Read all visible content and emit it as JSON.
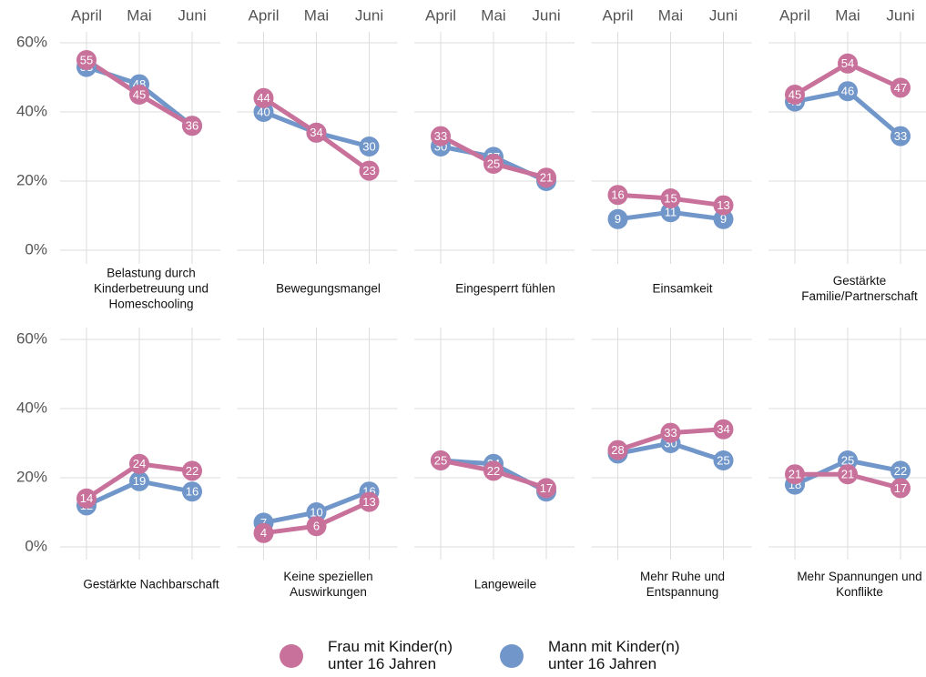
{
  "chart_data": {
    "type": "line",
    "categories": [
      "April",
      "Mai",
      "Juni"
    ],
    "ylim": [
      -4,
      63
    ],
    "yticks": [
      {
        "value": 0,
        "label": "0%"
      },
      {
        "value": 20,
        "label": "20%"
      },
      {
        "value": 40,
        "label": "40%"
      },
      {
        "value": 60,
        "label": "60%"
      }
    ],
    "grid": true,
    "legend": "bottom",
    "series": [
      {
        "name": "Frau mit Kinder(n) unter 16 Jahren",
        "color": "#c8719b"
      },
      {
        "name": "Mann mit Kinder(n) unter 16 Jahren",
        "color": "#7196c9"
      }
    ],
    "panels": [
      {
        "title": [
          "Belastung durch",
          "Kinderbetreuung und",
          "Homeschooling"
        ],
        "values": [
          [
            55,
            45,
            36
          ],
          [
            53,
            48,
            36
          ]
        ]
      },
      {
        "title": [
          "Bewegungsmangel"
        ],
        "values": [
          [
            44,
            34,
            23
          ],
          [
            40,
            34,
            30
          ]
        ]
      },
      {
        "title": [
          "Eingesperrt fühlen"
        ],
        "values": [
          [
            33,
            25,
            21
          ],
          [
            30,
            27,
            20
          ]
        ]
      },
      {
        "title": [
          "Einsamkeit"
        ],
        "values": [
          [
            16,
            15,
            13
          ],
          [
            9,
            11,
            9
          ]
        ]
      },
      {
        "title": [
          "Gestärkte",
          "Familie/Partnerschaft"
        ],
        "values": [
          [
            45,
            54,
            47
          ],
          [
            43,
            46,
            33
          ]
        ]
      },
      {
        "title": [
          "Gestärkte Nachbarschaft"
        ],
        "values": [
          [
            14,
            24,
            22
          ],
          [
            12,
            19,
            16
          ]
        ]
      },
      {
        "title": [
          "Keine speziellen",
          "Auswirkungen"
        ],
        "values": [
          [
            4,
            6,
            13
          ],
          [
            7,
            10,
            16
          ]
        ]
      },
      {
        "title": [
          "Langeweile"
        ],
        "values": [
          [
            25,
            22,
            17
          ],
          [
            25,
            24,
            16
          ]
        ]
      },
      {
        "title": [
          "Mehr Ruhe und",
          "Entspannung"
        ],
        "values": [
          [
            28,
            33,
            34
          ],
          [
            27,
            30,
            25
          ]
        ]
      },
      {
        "title": [
          "Mehr Spannungen und",
          "Konflikte"
        ],
        "values": [
          [
            21,
            21,
            17
          ],
          [
            18,
            25,
            22
          ]
        ]
      }
    ]
  }
}
